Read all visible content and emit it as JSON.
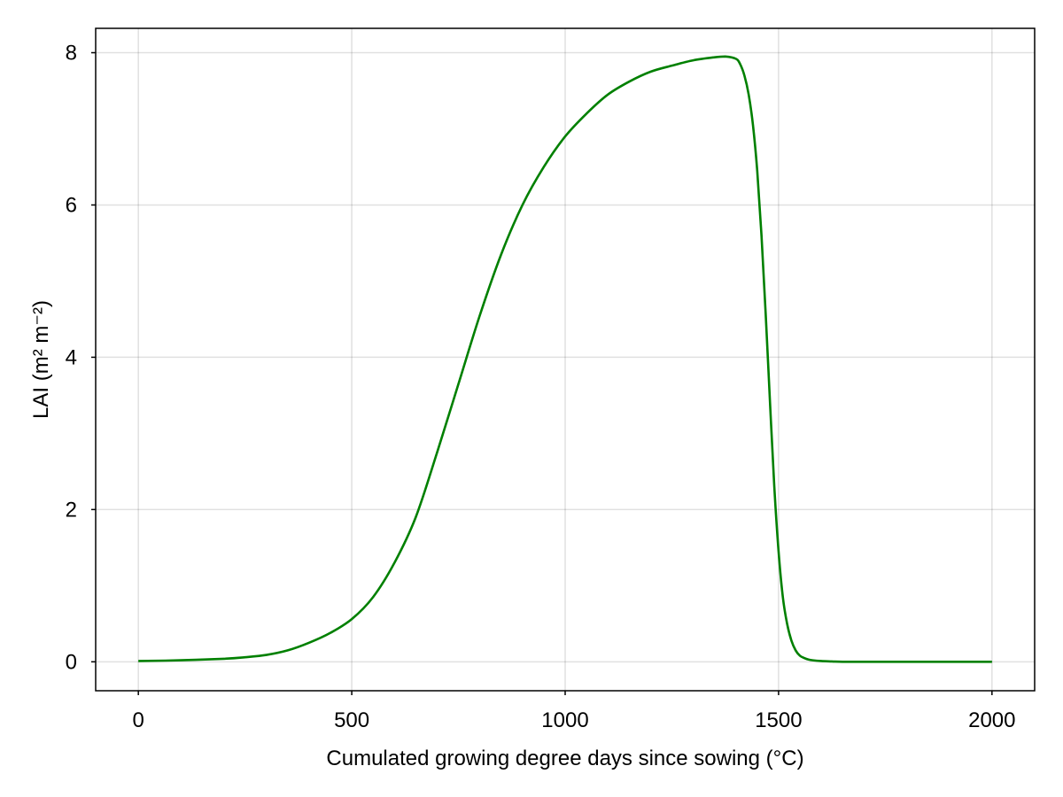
{
  "chart_data": {
    "type": "line",
    "title": "",
    "xlabel": "Cumulated growing degree days since sowing (°C)",
    "ylabel": "LAI (m² m⁻²)",
    "xlim": [
      -100,
      2100
    ],
    "ylim": [
      -0.38,
      8.32
    ],
    "xticks": [
      0,
      500,
      1000,
      1500,
      2000
    ],
    "xtick_labels": [
      "0",
      "500",
      "1000",
      "1500",
      "2000"
    ],
    "yticks": [
      0,
      2,
      4,
      6,
      8
    ],
    "ytick_labels": [
      "0",
      "2",
      "4",
      "6",
      "8"
    ],
    "grid": true,
    "legend": "none",
    "series": [
      {
        "color": "#008000",
        "x": [
          0,
          100,
          200,
          250,
          300,
          350,
          400,
          450,
          500,
          550,
          600,
          650,
          700,
          750,
          800,
          850,
          900,
          950,
          1000,
          1050,
          1100,
          1150,
          1200,
          1250,
          1300,
          1350,
          1375,
          1400,
          1410,
          1420,
          1430,
          1440,
          1450,
          1460,
          1470,
          1480,
          1490,
          1500,
          1510,
          1520,
          1530,
          1540,
          1550,
          1560,
          1570,
          1580,
          1600,
          1625,
          1650,
          1700,
          1800,
          1900,
          2000
        ],
        "y": [
          0.01,
          0.02,
          0.04,
          0.06,
          0.09,
          0.15,
          0.25,
          0.38,
          0.56,
          0.85,
          1.3,
          1.9,
          2.75,
          3.65,
          4.55,
          5.35,
          6.0,
          6.5,
          6.9,
          7.2,
          7.45,
          7.62,
          7.75,
          7.83,
          7.9,
          7.94,
          7.95,
          7.92,
          7.85,
          7.7,
          7.45,
          7.05,
          6.45,
          5.6,
          4.55,
          3.4,
          2.3,
          1.45,
          0.85,
          0.5,
          0.28,
          0.15,
          0.08,
          0.05,
          0.03,
          0.02,
          0.01,
          0.005,
          0.0,
          0.0,
          0.0,
          0.0,
          0.0
        ]
      }
    ]
  }
}
